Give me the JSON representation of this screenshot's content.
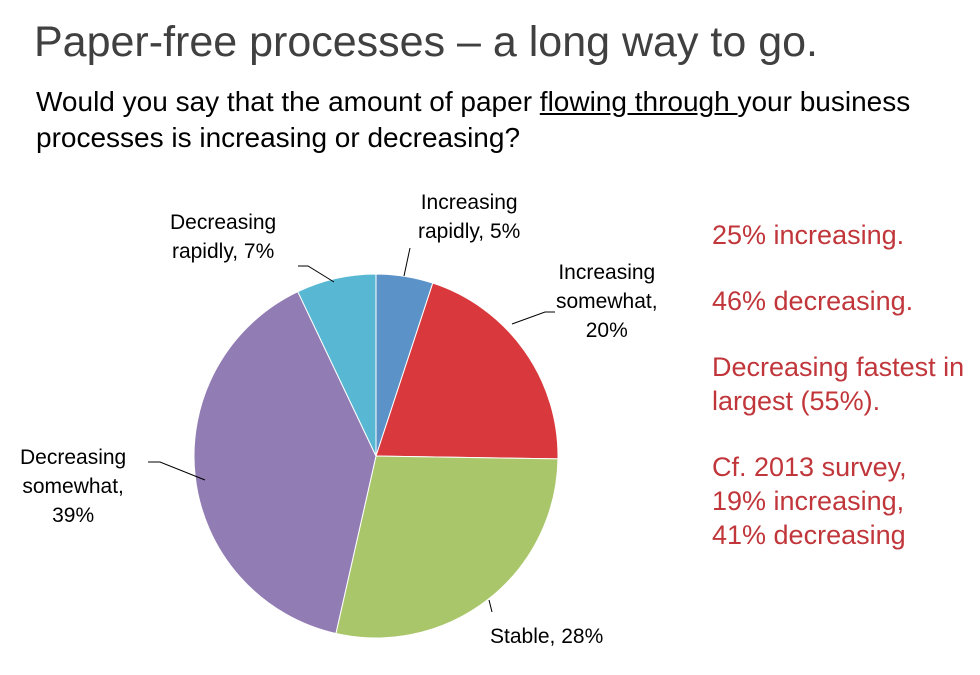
{
  "title": "Paper-free processes – a long way to go.",
  "question": {
    "before": "Would you say that the amount of paper ",
    "underlined": "flowing through ",
    "after": "your business processes is increasing or decreasing?"
  },
  "chart_data": {
    "type": "pie",
    "start": "top, clockwise",
    "categories": [
      "Increasing rapidly",
      "Increasing somewhat",
      "Stable",
      "Decreasing somewhat",
      "Decreasing rapidly"
    ],
    "values": [
      5,
      20,
      28,
      39,
      7
    ],
    "colors": [
      "#5b93c9",
      "#d9393c",
      "#aac66a",
      "#917cb4",
      "#58b8d4"
    ],
    "labels": [
      {
        "line1": "Increasing",
        "line2": "rapidly, 5%"
      },
      {
        "line1": "Increasing",
        "line2": "somewhat,",
        "line3": "20%"
      },
      {
        "line1": "Stable, 28%"
      },
      {
        "line1": "Decreasing",
        "line2": "somewhat,",
        "line3": "39%"
      },
      {
        "line1": "Decreasing",
        "line2": "rapidly, 7%"
      }
    ]
  },
  "notes": {
    "color": "#c0363a",
    "items": [
      "25% increasing.",
      "46% decreasing.",
      "Decreasing fastest in largest (55%).",
      "Cf. 2013 survey, 19% increasing, 41% decreasing"
    ]
  }
}
